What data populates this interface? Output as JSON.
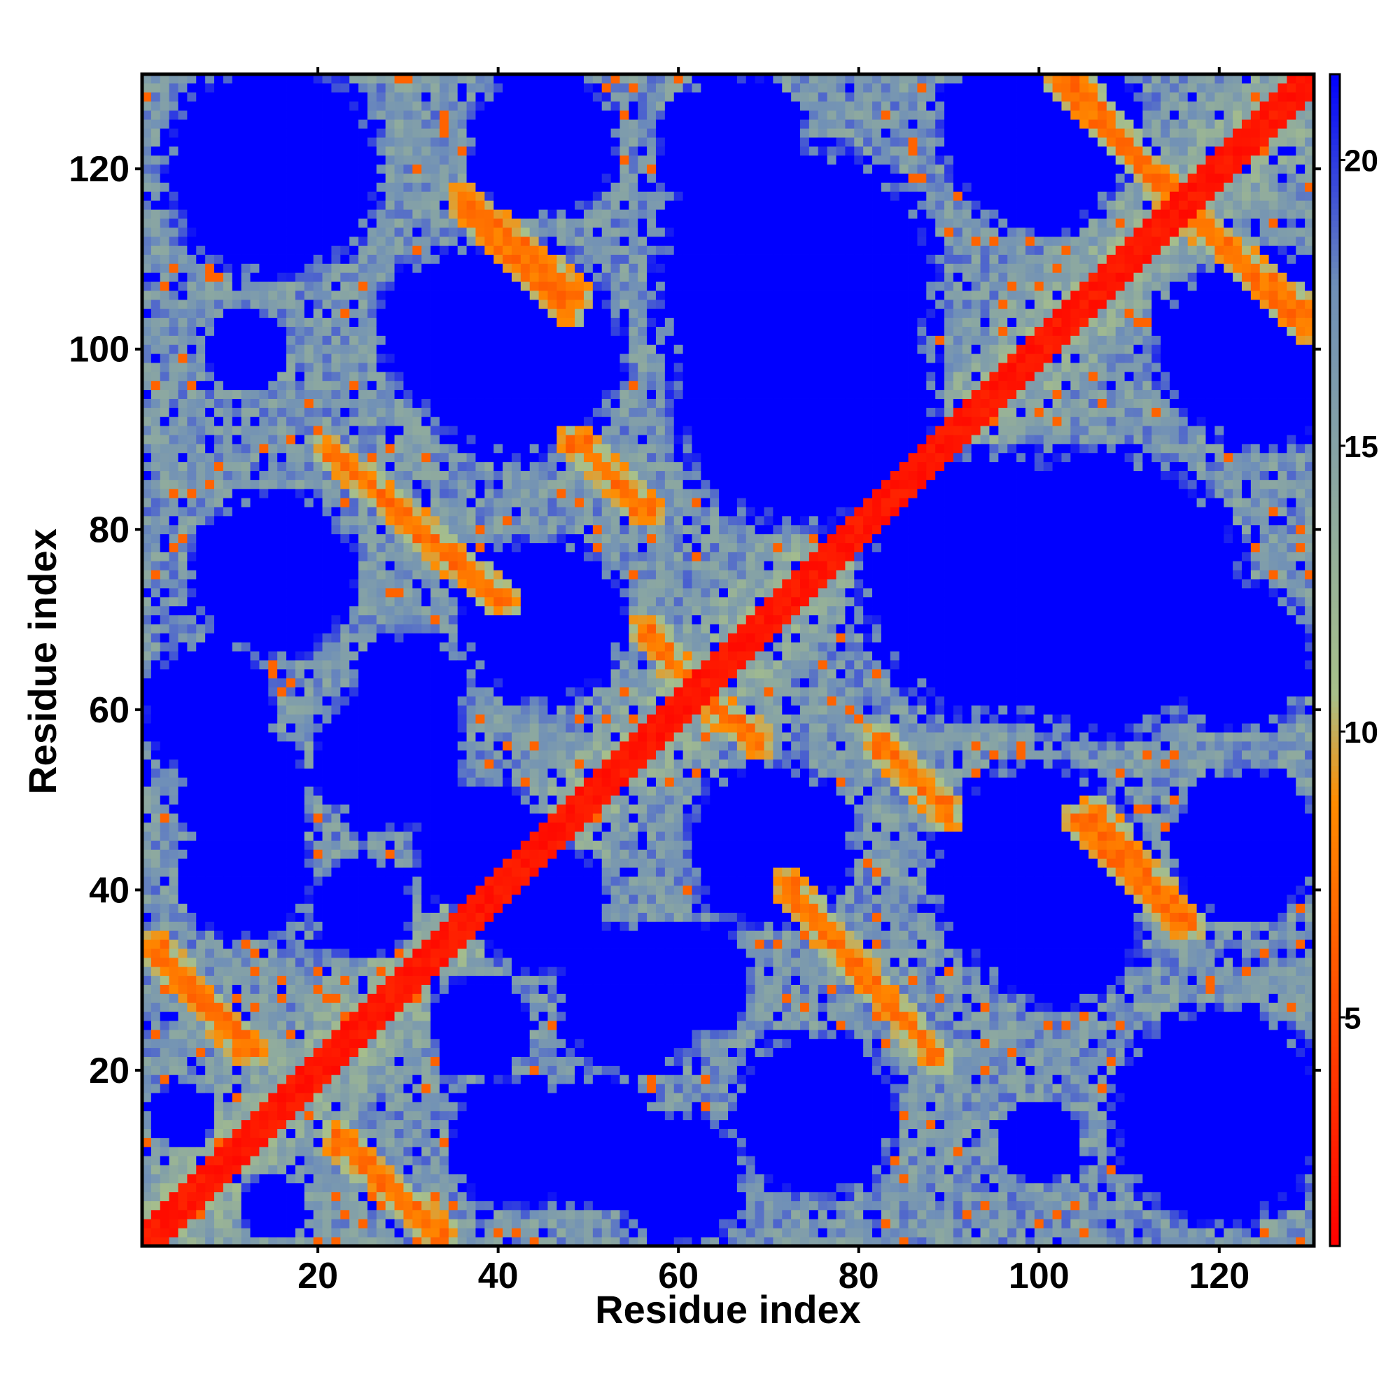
{
  "chart_data": {
    "type": "heatmap",
    "title": "",
    "xlabel": "Residue index",
    "ylabel": "Residue index",
    "xlim": [
      1,
      130
    ],
    "ylim": [
      1,
      130
    ],
    "x_ticks": [
      20,
      40,
      60,
      80,
      100,
      120
    ],
    "y_ticks": [
      20,
      40,
      60,
      80,
      100,
      120
    ],
    "colorbar": {
      "ticks": [
        5,
        10,
        15,
        20
      ],
      "range": [
        1,
        21.5
      ],
      "colors": [
        "#ff0000",
        "#ff8c00",
        "#a8c08a",
        "#6f8fb8",
        "#0000ff"
      ],
      "stops": [
        0,
        0.38,
        0.47,
        0.82,
        1
      ]
    },
    "grid": false,
    "legend": "colorbar-right",
    "diagonal_band_halfwidth": 2,
    "off_diagonal_bands": [
      {
        "from": [
          2,
          34
        ],
        "to": [
          12,
          22
        ]
      },
      {
        "from": [
          22,
          13
        ],
        "to": [
          34,
          1
        ]
      },
      {
        "from": [
          21,
          89
        ],
        "to": [
          40,
          72
        ]
      },
      {
        "from": [
          36,
          116
        ],
        "to": [
          48,
          104
        ]
      },
      {
        "from": [
          49,
          90
        ],
        "to": [
          56,
          82
        ]
      },
      {
        "from": [
          56,
          69
        ],
        "to": [
          63,
          61
        ]
      },
      {
        "from": [
          63,
          61
        ],
        "to": [
          69,
          57
        ]
      },
      {
        "from": [
          72,
          41
        ],
        "to": [
          89,
          21
        ]
      },
      {
        "from": [
          82,
          57
        ],
        "to": [
          90,
          48
        ]
      },
      {
        "from": [
          104,
          130
        ],
        "to": [
          115,
          116
        ]
      },
      {
        "from": [
          106,
          49
        ],
        "to": [
          117,
          36
        ]
      },
      {
        "from": [
          116,
          116
        ],
        "to": [
          130,
          102
        ]
      }
    ],
    "blue_regions": [
      {
        "center": [
          15,
          120
        ],
        "radius": 13
      },
      {
        "center": [
          45,
          123
        ],
        "radius": 9
      },
      {
        "center": [
          73,
          107
        ],
        "radius": 17
      },
      {
        "center": [
          100,
          122
        ],
        "radius": 10
      },
      {
        "center": [
          125,
          100
        ],
        "radius": 12
      },
      {
        "center": [
          42,
          100
        ],
        "radius": 13
      },
      {
        "center": [
          8,
          60
        ],
        "radius": 8
      },
      {
        "center": [
          15,
          75
        ],
        "radius": 9
      },
      {
        "center": [
          45,
          70
        ],
        "radius": 10
      },
      {
        "center": [
          28,
          55
        ],
        "radius": 9
      },
      {
        "center": [
          95,
          74
        ],
        "radius": 16
      },
      {
        "center": [
          122,
          66
        ],
        "radius": 9
      },
      {
        "center": [
          12,
          42
        ],
        "radius": 8
      },
      {
        "center": [
          25,
          38
        ],
        "radius": 6
      },
      {
        "center": [
          45,
          38
        ],
        "radius": 8
      },
      {
        "center": [
          62,
          30
        ],
        "radius": 7
      },
      {
        "center": [
          75,
          15
        ],
        "radius": 10
      },
      {
        "center": [
          102,
          36
        ],
        "radius": 10
      },
      {
        "center": [
          120,
          18
        ],
        "radius": 10
      },
      {
        "center": [
          128,
          45
        ],
        "radius": 5
      },
      {
        "center": [
          100,
          12
        ],
        "radius": 5
      },
      {
        "center": [
          50,
          12
        ],
        "radius": 8
      },
      {
        "center": [
          5,
          15
        ],
        "radius": 4
      }
    ]
  }
}
